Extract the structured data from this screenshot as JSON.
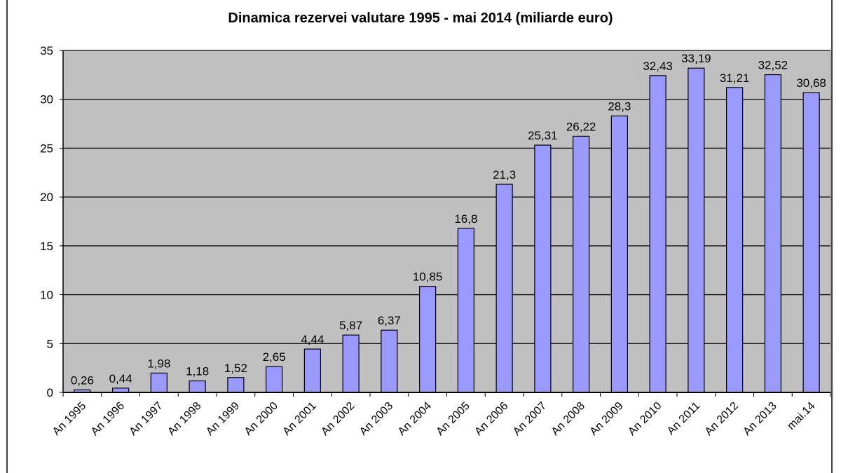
{
  "chart_data": {
    "type": "bar",
    "title": "Dinamica rezervei valutare 1995 - mai 2014 (miliarde euro)",
    "xlabel": "",
    "ylabel": "",
    "ylim": [
      0,
      35
    ],
    "yticks": [
      0,
      5,
      10,
      15,
      20,
      25,
      30,
      35
    ],
    "grid": true,
    "legend": "none",
    "plot_background": "#c0c0c0",
    "bar_color": "#9999ff",
    "categories": [
      "An 1995",
      "An 1996",
      "An 1997",
      "An 1998",
      "An 1999",
      "An 2000",
      "An 2001",
      "An 2002",
      "An 2003",
      "An 2004",
      "An 2005",
      "An 2006",
      "An 2007",
      "An 2008",
      "An 2009",
      "An 2010",
      "An 2011",
      "An 2012",
      "An 2013",
      "mai.14"
    ],
    "values": [
      0.26,
      0.44,
      1.98,
      1.18,
      1.52,
      2.65,
      4.44,
      5.87,
      6.37,
      10.85,
      16.8,
      21.3,
      25.31,
      26.22,
      28.3,
      32.43,
      33.19,
      31.21,
      32.52,
      30.68
    ],
    "data_labels": [
      "0,26",
      "0,44",
      "1,98",
      "1,18",
      "1,52",
      "2,65",
      "4,44",
      "5,87",
      "6,37",
      "10,85",
      "16,8",
      "21,3",
      "25,31",
      "26,22",
      "28,3",
      "32,43",
      "33,19",
      "31,21",
      "32,52",
      "30,68"
    ]
  }
}
